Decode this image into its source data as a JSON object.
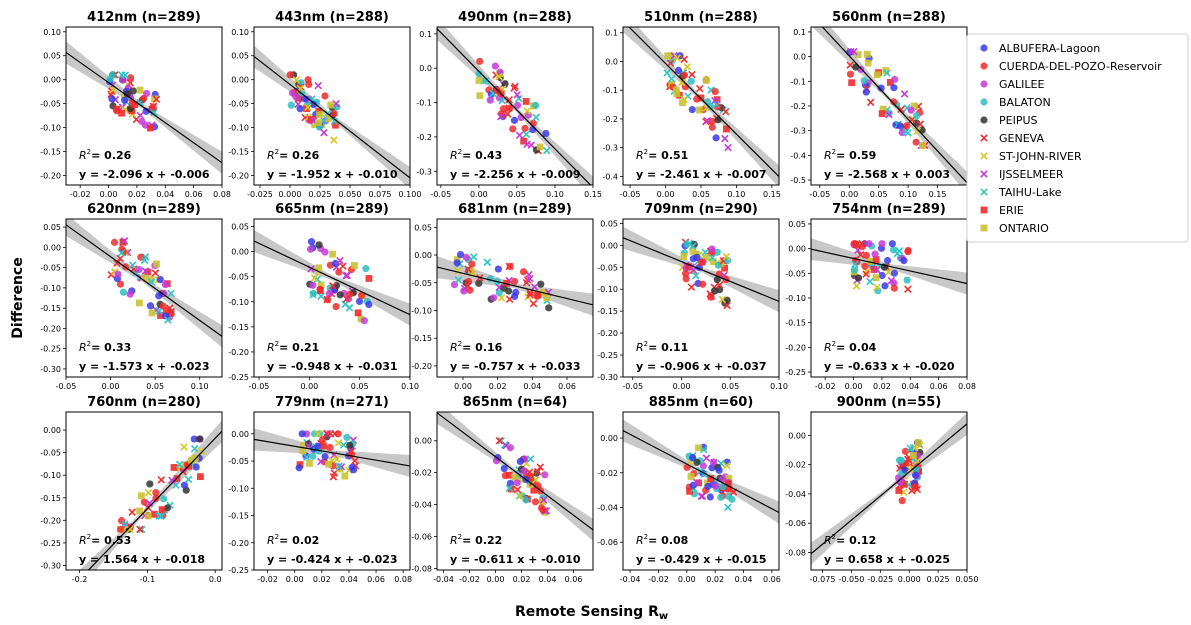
{
  "figure": {
    "ylabel": "Difference",
    "xlabel_main": "Remote Sensing R",
    "xlabel_sub": "w"
  },
  "legend": [
    {
      "name": "ALBUFERA-Lagoon",
      "color": "#3a3ae8",
      "marker": "circle"
    },
    {
      "name": "CUERDA-DEL-POZO-Reservoir",
      "color": "#ee2b2b",
      "marker": "circle"
    },
    {
      "name": "GALILEE",
      "color": "#c43ad6",
      "marker": "circle"
    },
    {
      "name": "BALATON",
      "color": "#2fbdc0",
      "marker": "circle"
    },
    {
      "name": "PEIPUS",
      "color": "#333333",
      "marker": "circle"
    },
    {
      "name": "GENEVA",
      "color": "#ee3030",
      "marker": "x"
    },
    {
      "name": "ST-JOHN-RIVER",
      "color": "#d6c821",
      "marker": "x"
    },
    {
      "name": "IJSSELMEER",
      "color": "#c43ad6",
      "marker": "x"
    },
    {
      "name": "TAIHU-Lake",
      "color": "#2fc4c6",
      "marker": "x"
    },
    {
      "name": "ERIE",
      "color": "#ee2b2b",
      "marker": "square"
    },
    {
      "name": "ONTARIO",
      "color": "#c9c232",
      "marker": "square"
    }
  ],
  "chart_data": [
    {
      "type": "scatter",
      "title": "412nm (n=289)",
      "xlim": [
        -0.03,
        0.08
      ],
      "ylim": [
        -0.22,
        0.11
      ],
      "xticks": [
        "-0.02",
        "0.00",
        "0.02",
        "0.04",
        "0.06",
        "0.08"
      ],
      "yticks": [
        "0.10",
        "0.05",
        "0.00",
        "-0.05",
        "-0.10",
        "-0.15",
        "-0.20"
      ],
      "r2": "0.26",
      "equation": "y = -2.096 x + -0.006",
      "slope": -2.096,
      "intercept": -0.006,
      "cluster": {
        "x": [
          0.0,
          0.035
        ],
        "y": [
          -0.16,
          0.01
        ]
      }
    },
    {
      "type": "scatter",
      "title": "443nm (n=288)",
      "xlim": [
        -0.03,
        0.1
      ],
      "ylim": [
        -0.22,
        0.11
      ],
      "xticks": [
        "-0.025",
        "0.000",
        "0.025",
        "0.050",
        "0.075",
        "0.100"
      ],
      "yticks": [
        "0.10",
        "0.05",
        "0.00",
        "-0.05",
        "-0.10",
        "-0.15",
        "-0.20"
      ],
      "r2": "0.26",
      "equation": "y = -1.952 x + -0.010",
      "slope": -1.952,
      "intercept": -0.01,
      "cluster": {
        "x": [
          0.0,
          0.04
        ],
        "y": [
          -0.16,
          0.01
        ]
      }
    },
    {
      "type": "scatter",
      "title": "490nm (n=288)",
      "xlim": [
        -0.055,
        0.15
      ],
      "ylim": [
        -0.34,
        0.12
      ],
      "xticks": [
        "-0.05",
        "0.00",
        "0.05",
        "0.10",
        "0.15"
      ],
      "yticks": [
        "0.1",
        "0.0",
        "-0.1",
        "-0.2",
        "-0.3"
      ],
      "r2": "0.43",
      "equation": "y = -2.256 x + -0.009",
      "slope": -2.256,
      "intercept": -0.009,
      "cluster": {
        "x": [
          0.0,
          0.09
        ],
        "y": [
          -0.24,
          0.02
        ]
      }
    },
    {
      "type": "scatter",
      "title": "510nm (n=288)",
      "xlim": [
        -0.06,
        0.16
      ],
      "ylim": [
        -0.43,
        0.12
      ],
      "xticks": [
        "-0.05",
        "0.00",
        "0.05",
        "0.10",
        "0.15"
      ],
      "yticks": [
        "0.1",
        "0.0",
        "-0.1",
        "-0.2",
        "-0.3",
        "-0.4"
      ],
      "r2": "0.51",
      "equation": "y = -2.461 x + -0.007",
      "slope": -2.461,
      "intercept": -0.007,
      "cluster": {
        "x": [
          0.0,
          0.09
        ],
        "y": [
          -0.3,
          0.02
        ]
      }
    },
    {
      "type": "scatter",
      "title": "560nm (n=288)",
      "xlim": [
        -0.065,
        0.2
      ],
      "ylim": [
        -0.52,
        0.12
      ],
      "xticks": [
        "-0.05",
        "0.00",
        "0.05",
        "0.10",
        "0.15"
      ],
      "yticks": [
        "0.1",
        "0.0",
        "-0.1",
        "-0.2",
        "-0.3",
        "-0.4",
        "-0.5"
      ],
      "r2": "0.59",
      "equation": "y = -2.568 x +  0.003",
      "slope": -2.568,
      "intercept": 0.003,
      "cluster": {
        "x": [
          0.0,
          0.13
        ],
        "y": [
          -0.36,
          0.02
        ]
      }
    },
    {
      "type": "scatter",
      "title": "620nm (n=289)",
      "xlim": [
        -0.05,
        0.125
      ],
      "ylim": [
        -0.32,
        0.07
      ],
      "xticks": [
        "-0.05",
        "0.00",
        "0.05",
        "0.10"
      ],
      "yticks": [
        "0.05",
        "0.00",
        "-0.05",
        "-0.10",
        "-0.15",
        "-0.20",
        "-0.25",
        "-0.30"
      ],
      "r2": "0.33",
      "equation": "y = -1.573 x + -0.023",
      "slope": -1.573,
      "intercept": -0.023,
      "cluster": {
        "x": [
          0.0,
          0.07
        ],
        "y": [
          -0.22,
          0.02
        ]
      }
    },
    {
      "type": "scatter",
      "title": "665nm (n=289)",
      "xlim": [
        -0.055,
        0.1
      ],
      "ylim": [
        -0.25,
        0.065
      ],
      "xticks": [
        "-0.05",
        "0.00",
        "0.05",
        "0.10"
      ],
      "yticks": [
        "0.05",
        "0.00",
        "-0.05",
        "-0.10",
        "-0.15",
        "-0.20",
        "-0.25"
      ],
      "r2": "0.21",
      "equation": "y = -0.948 x + -0.031",
      "slope": -0.948,
      "intercept": -0.031,
      "cluster": {
        "x": [
          0.0,
          0.06
        ],
        "y": [
          -0.18,
          0.02
        ]
      }
    },
    {
      "type": "scatter",
      "title": "681nm (n=289)",
      "xlim": [
        -0.015,
        0.075
      ],
      "ylim": [
        -0.22,
        0.065
      ],
      "xticks": [
        "0.00",
        "0.02",
        "0.04",
        "0.06"
      ],
      "yticks": [
        "0.05",
        "0.00",
        "-0.05",
        "-0.10",
        "-0.15",
        "-0.20"
      ],
      "r2": "0.16",
      "equation": "y = -0.757 x + -0.033",
      "slope": -0.757,
      "intercept": -0.033,
      "cluster": {
        "x": [
          -0.005,
          0.05
        ],
        "y": [
          -0.12,
          0.01
        ]
      }
    },
    {
      "type": "scatter",
      "title": "709nm (n=290)",
      "xlim": [
        -0.06,
        0.1
      ],
      "ylim": [
        -0.3,
        0.06
      ],
      "xticks": [
        "-0.05",
        "0.00",
        "0.05",
        "0.10"
      ],
      "yticks": [
        "0.05",
        "0.00",
        "-0.05",
        "-0.10",
        "-0.15",
        "-0.20",
        "-0.25",
        "-0.30"
      ],
      "r2": "0.11",
      "equation": "y = -0.906 x + -0.037",
      "slope": -0.906,
      "intercept": -0.037,
      "cluster": {
        "x": [
          0.0,
          0.05
        ],
        "y": [
          -0.2,
          0.01
        ]
      }
    },
    {
      "type": "scatter",
      "title": "754nm (n=289)",
      "xlim": [
        -0.03,
        0.08
      ],
      "ylim": [
        -0.26,
        0.06
      ],
      "xticks": [
        "-0.02",
        "0.00",
        "0.02",
        "0.04",
        "0.06",
        "0.08"
      ],
      "yticks": [
        "0.05",
        "0.00",
        "-0.05",
        "-0.10",
        "-0.15",
        "-0.20",
        "-0.25"
      ],
      "r2": "0.04",
      "equation": "y = -0.633 x + -0.020",
      "slope": -0.633,
      "intercept": -0.02,
      "cluster": {
        "x": [
          0.0,
          0.04
        ],
        "y": [
          -0.19,
          0.01
        ]
      }
    },
    {
      "type": "scatter",
      "title": "760nm (n=280)",
      "xlim": [
        -0.22,
        0.01
      ],
      "ylim": [
        -0.31,
        0.04
      ],
      "xticks": [
        "-0.2",
        "-0.1",
        "0.0"
      ],
      "yticks": [
        "0.00",
        "-0.05",
        "-0.10",
        "-0.15",
        "-0.20",
        "-0.25",
        "-0.30"
      ],
      "r2": "0.53",
      "equation": "y = 1.564 x + -0.018",
      "slope": 1.564,
      "intercept": -0.018,
      "cluster": {
        "x": [
          -0.14,
          -0.02
        ],
        "y": [
          -0.22,
          -0.02
        ]
      }
    },
    {
      "type": "scatter",
      "title": "779nm (n=271)",
      "xlim": [
        -0.03,
        0.085
      ],
      "ylim": [
        -0.25,
        0.04
      ],
      "xticks": [
        "-0.02",
        "0.00",
        "0.02",
        "0.04",
        "0.06",
        "0.08"
      ],
      "yticks": [
        "0.00",
        "-0.05",
        "-0.10",
        "-0.15",
        "-0.20",
        "-0.25"
      ],
      "r2": "0.02",
      "equation": "y = -0.424 x + -0.023",
      "slope": -0.424,
      "intercept": -0.023,
      "cluster": {
        "x": [
          0.0,
          0.045
        ],
        "y": [
          -0.17,
          0.0
        ]
      }
    },
    {
      "type": "scatter",
      "title": "865nm (n=64)",
      "xlim": [
        -0.045,
        0.075
      ],
      "ylim": [
        -0.081,
        0.018
      ],
      "xticks": [
        "-0.04",
        "-0.02",
        "0.00",
        "0.02",
        "0.04",
        "0.06"
      ],
      "yticks": [
        "0.00",
        "-0.02",
        "-0.04",
        "-0.06",
        "-0.08"
      ],
      "r2": "0.22",
      "equation": "y = -0.611 x + -0.010",
      "slope": -0.611,
      "intercept": -0.01,
      "cluster": {
        "x": [
          0.0,
          0.04
        ],
        "y": [
          -0.056,
          0.0
        ]
      }
    },
    {
      "type": "scatter",
      "title": "885nm (n=60)",
      "xlim": [
        -0.045,
        0.065
      ],
      "ylim": [
        -0.076,
        0.015
      ],
      "xticks": [
        "-0.04",
        "-0.02",
        "0.00",
        "0.02",
        "0.04",
        "0.06"
      ],
      "yticks": [
        "0.00",
        "-0.02",
        "-0.04",
        "-0.06"
      ],
      "r2": "0.08",
      "equation": "y = -0.429 x + -0.015",
      "slope": -0.429,
      "intercept": -0.015,
      "cluster": {
        "x": [
          0.0,
          0.033
        ],
        "y": [
          -0.055,
          0.0
        ]
      }
    },
    {
      "type": "scatter",
      "title": "900nm (n=55)",
      "xlim": [
        -0.085,
        0.05
      ],
      "ylim": [
        -0.092,
        0.016
      ],
      "xticks": [
        "-0.075",
        "-0.050",
        "-0.025",
        "0.000",
        "0.025",
        "0.050"
      ],
      "yticks": [
        "0.00",
        "-0.02",
        "-0.04",
        "-0.06",
        "-0.08"
      ],
      "r2": "0.12",
      "equation": "y = 0.658 x + -0.025",
      "slope": 0.658,
      "intercept": -0.025,
      "cluster": {
        "x": [
          -0.01,
          0.01
        ],
        "y": [
          -0.066,
          -0.005
        ]
      }
    }
  ]
}
